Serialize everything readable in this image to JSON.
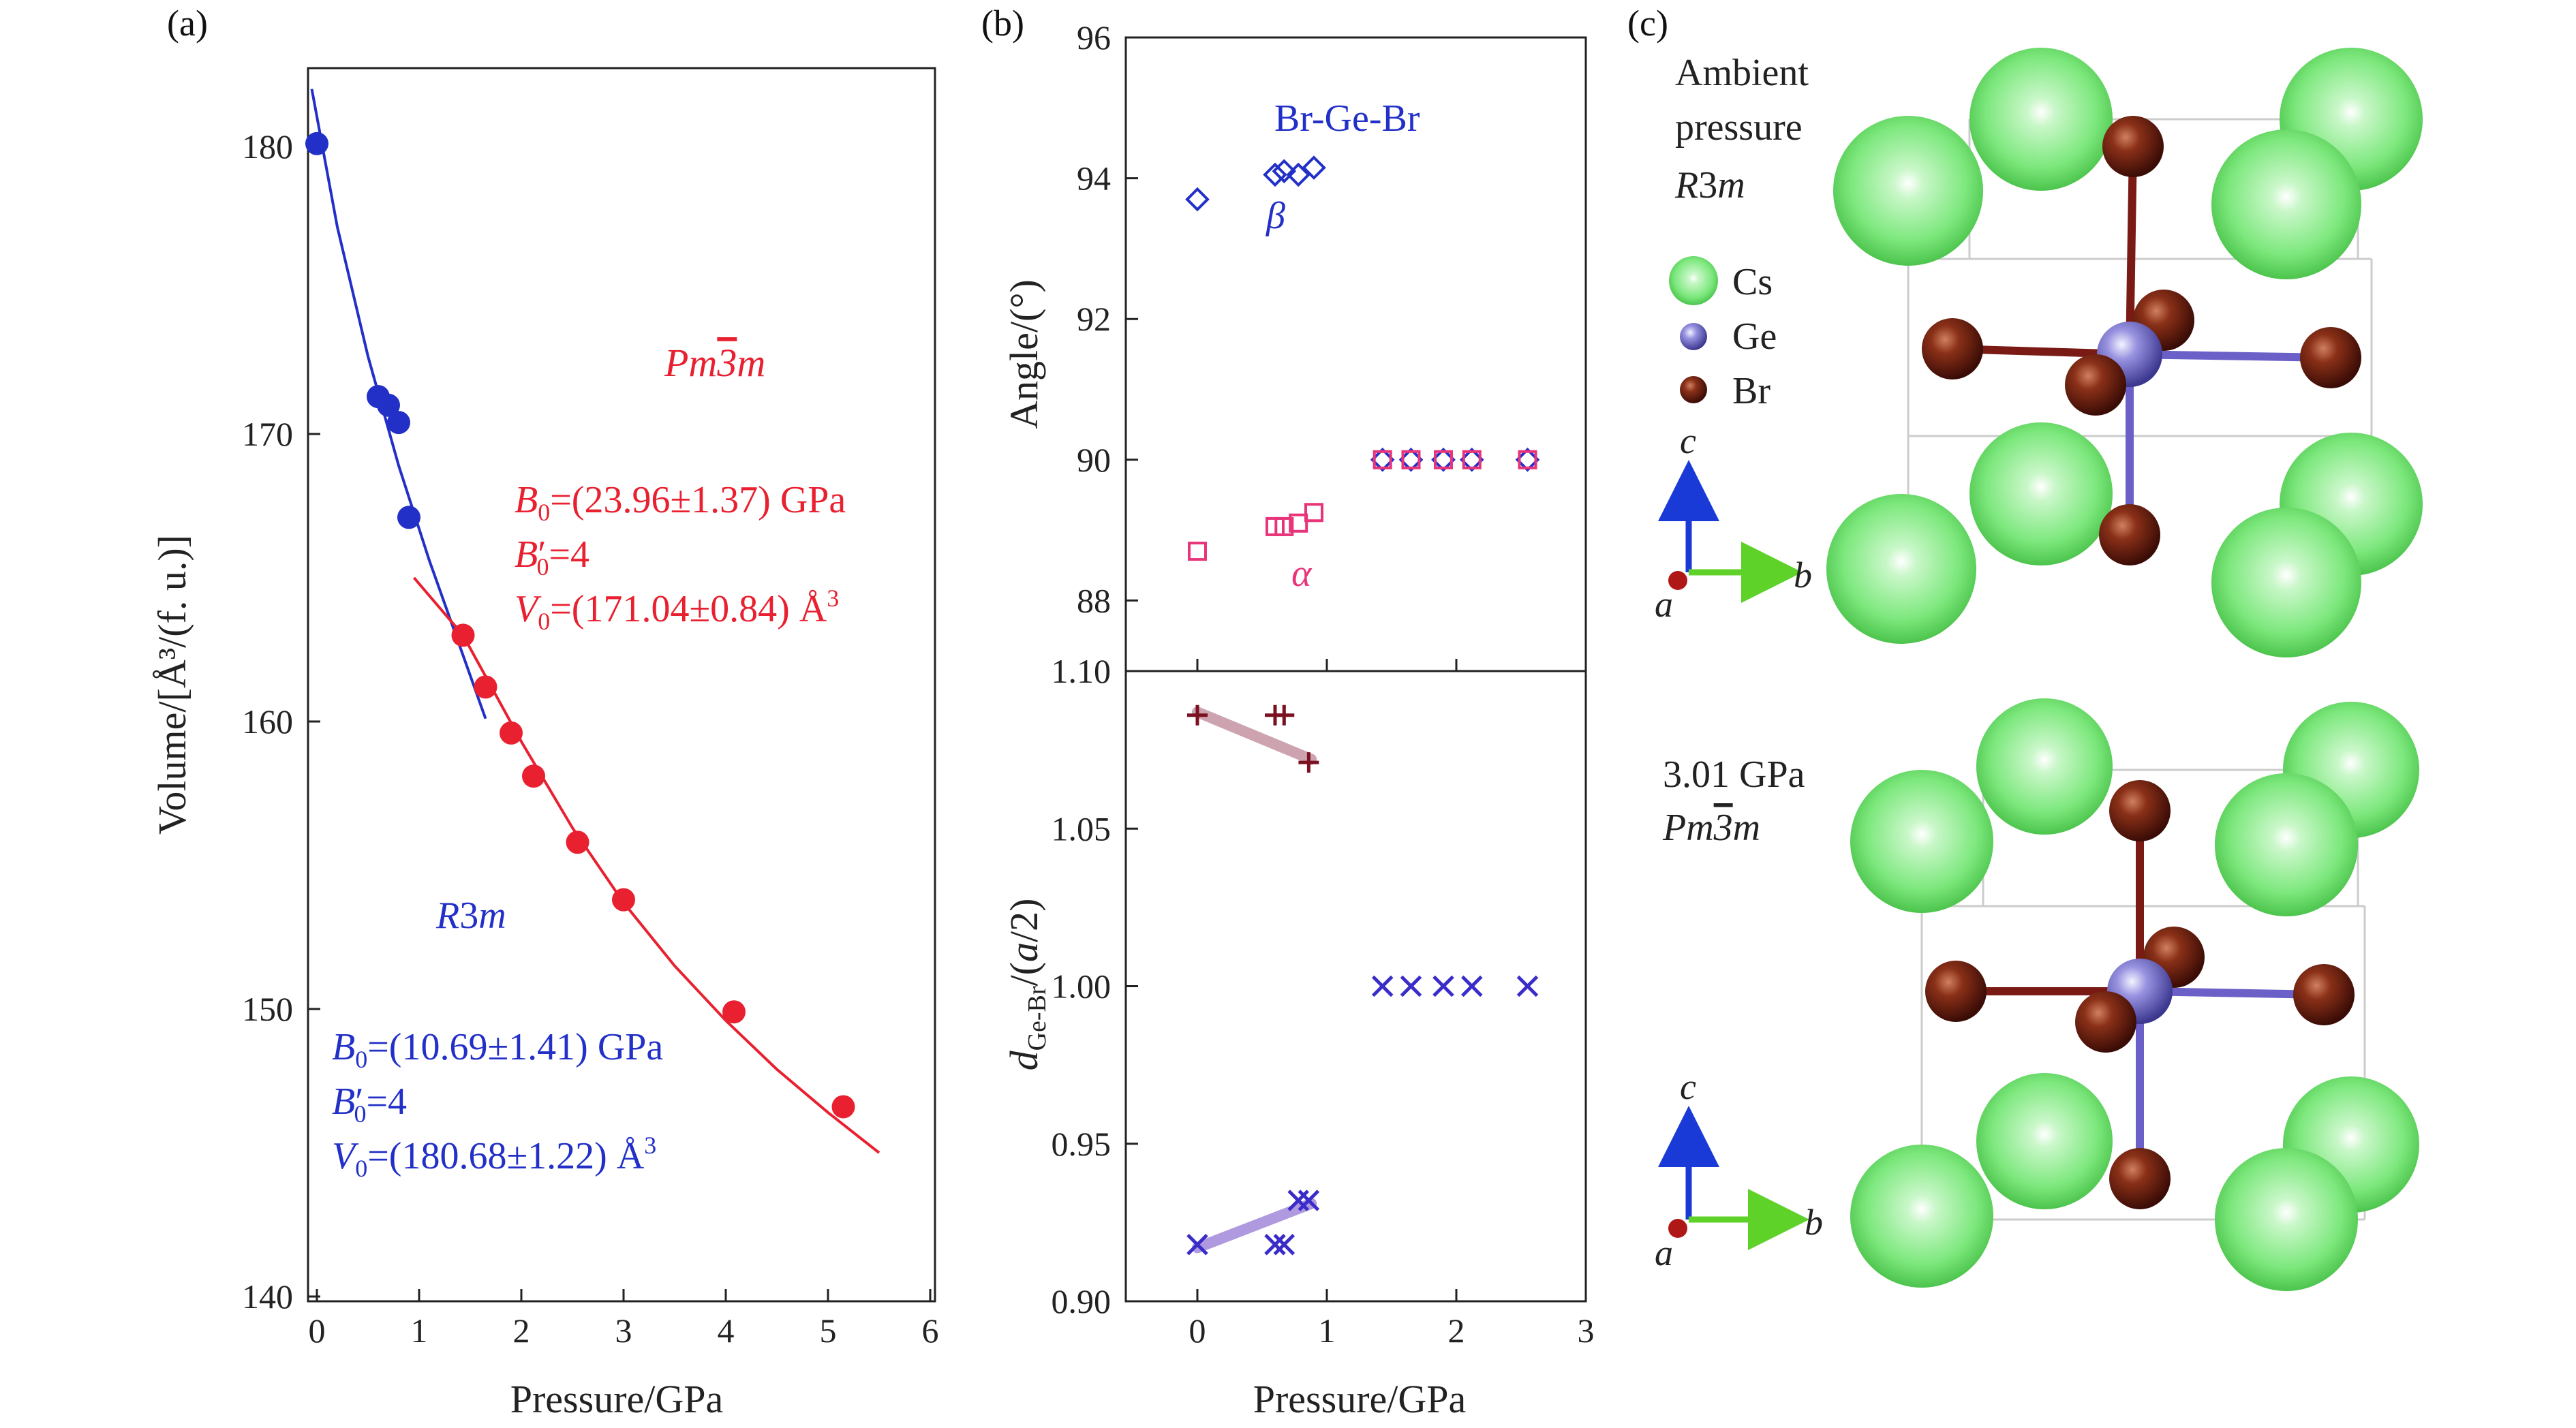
{
  "colors": {
    "red": "#e8202f",
    "blue": "#2230c8",
    "pink": "#e8347a",
    "maroon": "#7a1020",
    "purple": "#3a2cc8",
    "cs": "#7de87d",
    "ge": "#8a86d8",
    "br": "#7a2a1a"
  },
  "chart_data": [
    {
      "type": "scatter",
      "panel": "(a)",
      "xlabel": "Pressure/GPa",
      "ylabel": "Volume/[Å³/(f. u.)]",
      "xlim": [
        -0.2,
        6
      ],
      "ylim": [
        140,
        185
      ],
      "xticks": [
        "0",
        "1",
        "2",
        "3",
        "4",
        "5",
        "6"
      ],
      "yticks": [
        "140",
        "150",
        "160",
        "170",
        "180"
      ],
      "series": [
        {
          "color": "#2230c8",
          "points": [
            [
              0.0,
              180.1
            ],
            [
              0.6,
              171.3
            ],
            [
              0.7,
              171.0
            ],
            [
              0.8,
              170.4
            ],
            [
              0.9,
              167.1
            ]
          ],
          "fit": [
            [
              -0.05,
              182.0
            ],
            [
              0.2,
              177.2
            ],
            [
              0.5,
              172.7
            ],
            [
              0.8,
              168.9
            ],
            [
              1.1,
              165.6
            ],
            [
              1.4,
              162.6
            ],
            [
              1.65,
              160.1
            ]
          ]
        },
        {
          "color": "#e8202f",
          "points": [
            [
              1.43,
              163.0
            ],
            [
              1.65,
              161.2
            ],
            [
              1.9,
              159.6
            ],
            [
              2.12,
              158.1
            ],
            [
              2.55,
              155.8
            ],
            [
              3.0,
              153.8
            ],
            [
              4.08,
              149.9
            ],
            [
              5.15,
              146.6
            ]
          ],
          "fit": [
            [
              0.95,
              165.0
            ],
            [
              1.43,
              163.0
            ],
            [
              2.0,
              159.3
            ],
            [
              2.5,
              156.3
            ],
            [
              3.0,
              153.7
            ],
            [
              3.5,
              151.5
            ],
            [
              4.0,
              149.6
            ],
            [
              4.5,
              147.9
            ],
            [
              5.0,
              146.4
            ],
            [
              5.5,
              145.0
            ]
          ]
        }
      ],
      "annotations": {
        "red_phase_pre": "Pm",
        "red_phase_bar": "3",
        "red_phase_post": "m",
        "red_b0_sym": "B",
        "red_sub": "0",
        "red_b0_val": "=(23.96±1.37) GPa",
        "red_b0p_sym": "B",
        "red_b0p_prime": "′",
        "red_b0p_val": "=4",
        "red_v0_sym": "V",
        "red_v0_val": "=(171.04±0.84) Å",
        "red_v0_sup": "3",
        "blue_phase_pre": "R",
        "blue_phase_num": "3",
        "blue_phase_post": "m",
        "blue_b0_sym": "B",
        "blue_sub": "0",
        "blue_b0_val": "=(10.69±1.41) GPa",
        "blue_b0p_sym": "B",
        "blue_b0p_prime": "′",
        "blue_b0p_val": "=4",
        "blue_v0_sym": "V",
        "blue_v0_val": "=(180.68±1.22) Å",
        "blue_v0_sup": "3"
      }
    },
    {
      "type": "scatter",
      "panel": "(b)",
      "ylabel": "Angle/(°)",
      "xlim": [
        -0.5,
        3
      ],
      "ylim": [
        87,
        96
      ],
      "yticks": [
        "88",
        "90",
        "92",
        "94",
        "96"
      ],
      "series": [
        {
          "label": "β",
          "marker": "diamond",
          "color": "#2230c8",
          "points": [
            [
              0.0,
              93.7
            ],
            [
              0.6,
              94.05
            ],
            [
              0.67,
              94.1
            ],
            [
              0.78,
              94.05
            ],
            [
              0.9,
              94.15
            ],
            [
              1.43,
              90.0
            ],
            [
              1.65,
              90.0
            ],
            [
              1.9,
              90.0
            ],
            [
              2.12,
              90.0
            ],
            [
              2.55,
              90.0
            ]
          ]
        },
        {
          "label": "α",
          "marker": "square",
          "color": "#e8347a",
          "points": [
            [
              0.0,
              88.7
            ],
            [
              0.6,
              89.05
            ],
            [
              0.67,
              89.05
            ],
            [
              0.78,
              89.1
            ],
            [
              0.9,
              89.25
            ],
            [
              1.43,
              90.0
            ],
            [
              1.65,
              90.0
            ],
            [
              1.9,
              90.0
            ],
            [
              2.12,
              90.0
            ],
            [
              2.55,
              90.0
            ]
          ]
        }
      ],
      "annotations": {
        "title": "Br-Ge-Br",
        "beta": "β",
        "alpha": "α"
      }
    },
    {
      "type": "scatter",
      "panel": "(b)",
      "xlabel": "Pressure/GPa",
      "ylabel_pre": "d",
      "ylabel_sub": "Ge-Br",
      "ylabel_mid": "/(",
      "ylabel_a": "a",
      "ylabel_post": "/2)",
      "xlim": [
        -0.5,
        3
      ],
      "ylim": [
        0.9,
        1.1
      ],
      "xticks": [
        "0",
        "1",
        "2",
        "3"
      ],
      "yticks": [
        "0.90",
        "0.95",
        "1.00",
        "1.05",
        "1.10"
      ],
      "series": [
        {
          "marker": "plus",
          "color": "#7a1020",
          "points": [
            [
              0.0,
              1.086
            ],
            [
              0.6,
              1.086
            ],
            [
              0.67,
              1.086
            ],
            [
              0.86,
              1.071
            ]
          ],
          "trend": [
            [
              0.0,
              1.087
            ],
            [
              0.88,
              1.072
            ]
          ]
        },
        {
          "marker": "cross",
          "color": "#3a2cc8",
          "points": [
            [
              0.0,
              0.918
            ],
            [
              0.6,
              0.918
            ],
            [
              0.67,
              0.918
            ],
            [
              0.78,
              0.932
            ],
            [
              0.86,
              0.932
            ],
            [
              1.43,
              1.0
            ],
            [
              1.65,
              1.0
            ],
            [
              1.9,
              1.0
            ],
            [
              2.12,
              1.0
            ],
            [
              2.55,
              1.0
            ]
          ],
          "trend": [
            [
              0.0,
              0.917
            ],
            [
              0.88,
              0.931
            ]
          ]
        }
      ]
    }
  ],
  "structure": {
    "panel_label": "(c)",
    "top_lines": [
      "Ambient",
      "pressure"
    ],
    "top_phase_pre": "R",
    "top_phase_num": "3",
    "top_phase_post": "m",
    "bottom_pressure": "3.01 GPa",
    "bottom_phase_pre": "Pm",
    "bottom_phase_bar": "3",
    "bottom_phase_post": "m",
    "legend": [
      "Cs",
      "Ge",
      "Br"
    ],
    "axis_c": "c",
    "axis_b": "b",
    "axis_a": "a"
  }
}
